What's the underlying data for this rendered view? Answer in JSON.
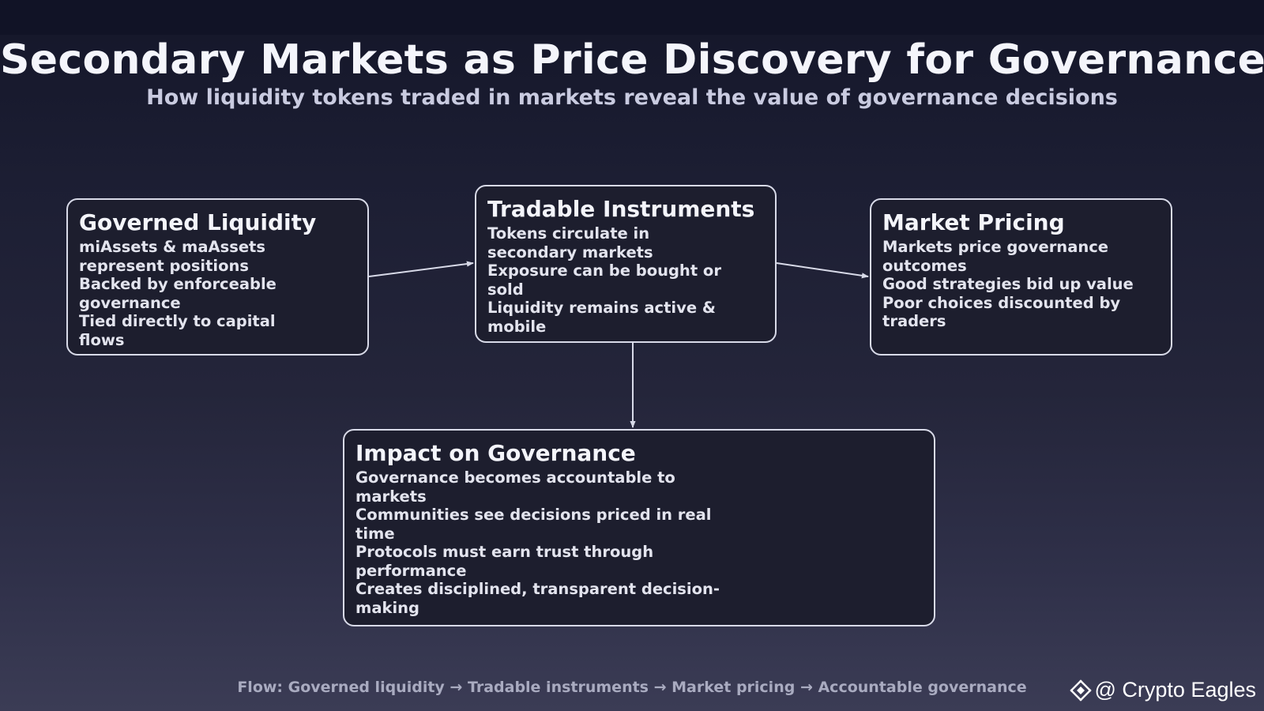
{
  "header": {
    "title": "Secondary Markets as Price Discovery for Governance",
    "subtitle": "How liquidity tokens traded in markets reveal the value of governance decisions"
  },
  "nodes": {
    "governed_liquidity": {
      "title": "Governed Liquidity",
      "items": [
        "miAssets & maAssets represent positions",
        "Backed by enforceable governance",
        "Tied directly to capital flows"
      ]
    },
    "tradable_instruments": {
      "title": "Tradable Instruments",
      "items": [
        "Tokens circulate in secondary markets",
        "Exposure can be bought or sold",
        "Liquidity remains active & mobile"
      ]
    },
    "market_pricing": {
      "title": "Market Pricing",
      "items": [
        "Markets price governance outcomes",
        "Good strategies bid up value",
        "Poor choices discounted by traders"
      ]
    },
    "impact_on_governance": {
      "title": "Impact on Governance",
      "items": [
        "Governance becomes accountable to markets",
        "Communities see decisions priced in real time",
        "Protocols must earn trust through performance",
        "Creates disciplined, transparent decision-making"
      ]
    }
  },
  "edges": [
    {
      "from": "Governed Liquidity",
      "to": "Tradable Instruments"
    },
    {
      "from": "Tradable Instruments",
      "to": "Market Pricing"
    },
    {
      "from": "Tradable Instruments",
      "to": "Impact on Governance"
    }
  ],
  "footer": {
    "flow_caption": "Flow: Governed liquidity → Tradable instruments → Market pricing → Accountable governance",
    "watermark": "@ Crypto Eagles",
    "watermark_icon": "diamond-logo-icon"
  },
  "colors": {
    "background_top": "#141629",
    "background_bottom": "#3b3c55",
    "box_fill": "#1d1e2e",
    "box_border": "#d8dae8",
    "arrow": "#d8dae8"
  }
}
